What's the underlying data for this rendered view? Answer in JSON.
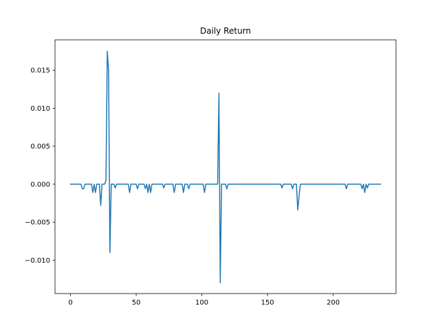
{
  "chart_data": {
    "type": "line",
    "title": "Daily Return",
    "xlabel": "",
    "ylabel": "",
    "xlim": [
      -11.8,
      247.8
    ],
    "ylim": [
      -0.0144,
      0.019
    ],
    "xticks": [
      0,
      50,
      100,
      150,
      200
    ],
    "yticks": [
      -0.01,
      -0.005,
      0.0,
      0.005,
      0.01,
      0.015
    ],
    "xtick_labels": [
      "0",
      "50",
      "100",
      "150",
      "200"
    ],
    "ytick_labels": [
      "−0.010",
      "−0.005",
      "0.000",
      "0.005",
      "0.010",
      "0.015"
    ],
    "grid": false,
    "legend": "none",
    "series": [
      {
        "color": "#1f77b4",
        "points": [
          [
            0,
            0
          ],
          [
            8,
            0
          ],
          [
            9,
            -0.0006
          ],
          [
            10,
            -0.0006
          ],
          [
            11,
            0
          ],
          [
            16,
            0
          ],
          [
            17,
            -0.0011
          ],
          [
            18,
            0
          ],
          [
            19,
            -0.0011
          ],
          [
            20,
            0
          ],
          [
            22,
            0
          ],
          [
            23,
            -0.0028
          ],
          [
            24,
            0
          ],
          [
            26,
            0
          ],
          [
            27,
            0.0005
          ],
          [
            28,
            0.0175
          ],
          [
            29,
            0.015
          ],
          [
            30,
            -0.009
          ],
          [
            31,
            0
          ],
          [
            33,
            0
          ],
          [
            34,
            -0.0005
          ],
          [
            35,
            0
          ],
          [
            44,
            0
          ],
          [
            45,
            -0.0011
          ],
          [
            46,
            0
          ],
          [
            50,
            0
          ],
          [
            51,
            -0.0006
          ],
          [
            52,
            0
          ],
          [
            56,
            0
          ],
          [
            57,
            -0.0006
          ],
          [
            58,
            0
          ],
          [
            59,
            -0.0011
          ],
          [
            60,
            0
          ],
          [
            61,
            -0.0011
          ],
          [
            62,
            0
          ],
          [
            70,
            0
          ],
          [
            71,
            -0.0005
          ],
          [
            72,
            0
          ],
          [
            78,
            0
          ],
          [
            79,
            -0.0011
          ],
          [
            80,
            0
          ],
          [
            85,
            0
          ],
          [
            86,
            -0.0011
          ],
          [
            87,
            0
          ],
          [
            89,
            0
          ],
          [
            90,
            -0.0006
          ],
          [
            91,
            0
          ],
          [
            101,
            0
          ],
          [
            102,
            -0.0011
          ],
          [
            103,
            0
          ],
          [
            112,
            0
          ],
          [
            113,
            0.012
          ],
          [
            114,
            -0.013
          ],
          [
            115,
            0
          ],
          [
            118,
            0
          ],
          [
            119,
            -0.0006
          ],
          [
            120,
            0
          ],
          [
            160,
            0
          ],
          [
            161,
            -0.0005
          ],
          [
            162,
            0
          ],
          [
            168,
            0
          ],
          [
            169,
            -0.0006
          ],
          [
            170,
            0
          ],
          [
            172,
            0
          ],
          [
            173,
            -0.0034
          ],
          [
            174,
            -0.0015
          ],
          [
            175,
            0
          ],
          [
            209,
            0
          ],
          [
            210,
            -0.0006
          ],
          [
            211,
            0
          ],
          [
            221,
            0
          ],
          [
            222,
            -0.0006
          ],
          [
            223,
            0
          ],
          [
            224,
            -0.0011
          ],
          [
            225,
            0
          ],
          [
            226,
            -0.0005
          ],
          [
            227,
            0
          ],
          [
            236,
            0
          ]
        ]
      }
    ]
  }
}
